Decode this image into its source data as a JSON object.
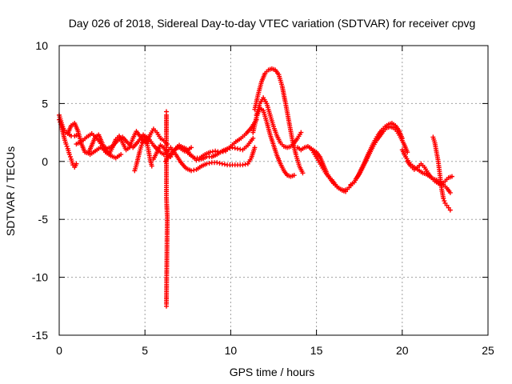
{
  "chart_data": {
    "type": "scatter",
    "title": "Day 026 of 2018, Sidereal Day-to-day VTEC variation (SDTVAR) for receiver cpvg",
    "xlabel": "GPS time / hours",
    "ylabel": "SDTVAR / TECUs",
    "xlim": [
      0,
      25
    ],
    "ylim": [
      -15,
      10
    ],
    "xticks": [
      "0",
      "5",
      "10",
      "15",
      "20",
      "25"
    ],
    "yticks": [
      "10",
      "5",
      "0",
      "-5",
      "-10",
      "-15"
    ],
    "grid": true,
    "marker": "+",
    "series_color": "#ff0000",
    "series": [
      {
        "name": "sdtvar",
        "segments": [
          {
            "x": [
              0.0,
              0.1,
              0.2,
              0.3,
              0.4,
              0.5,
              0.6,
              0.7,
              0.8,
              0.9,
              1.0
            ],
            "y": [
              3.6,
              3.2,
              2.6,
              2.0,
              1.5,
              1.1,
              0.6,
              0.2,
              -0.3,
              -0.5,
              -0.2
            ]
          },
          {
            "x": [
              0.0,
              0.1,
              0.2,
              0.3,
              0.4,
              0.5,
              0.7,
              0.9,
              1.1
            ],
            "y": [
              4.0,
              3.5,
              3.0,
              2.7,
              2.5,
              2.4,
              2.2,
              2.2,
              2.3
            ]
          },
          {
            "x": [
              0.5,
              0.7,
              0.9,
              1.1,
              1.3,
              1.5,
              1.7,
              1.9,
              2.1,
              2.3,
              2.5,
              2.7,
              2.9,
              3.1,
              3.3,
              3.5,
              3.7,
              3.9,
              4.1,
              4.3,
              4.5,
              4.7,
              4.9,
              5.1,
              5.3,
              5.5,
              5.7,
              5.9,
              6.1,
              6.3
            ],
            "y": [
              2.4,
              3.1,
              3.3,
              2.6,
              1.5,
              0.8,
              0.7,
              1.4,
              2.1,
              2.3,
              1.6,
              0.8,
              0.6,
              1.2,
              1.9,
              2.2,
              1.6,
              1.0,
              1.2,
              2.0,
              2.6,
              2.2,
              1.7,
              1.6,
              2.3,
              2.8,
              2.5,
              2.0,
              1.8,
              1.5
            ]
          },
          {
            "x": [
              1.0,
              1.3,
              1.6,
              1.9,
              2.2,
              2.5,
              2.8,
              3.1,
              3.4,
              3.7,
              4.0,
              4.3,
              4.6,
              4.9,
              5.2,
              5.5,
              5.8,
              6.1,
              6.4
            ],
            "y": [
              1.5,
              1.7,
              2.1,
              2.4,
              2.0,
              1.4,
              1.1,
              1.3,
              1.8,
              2.1,
              1.6,
              1.2,
              1.7,
              2.3,
              2.0,
              1.4,
              0.9,
              0.6,
              1.0
            ]
          },
          {
            "x": [
              1.8,
              2.1,
              2.4,
              2.7,
              3.0,
              3.3,
              3.6
            ],
            "y": [
              0.6,
              0.9,
              1.2,
              1.0,
              0.5,
              0.3,
              0.6
            ]
          },
          {
            "x": [
              4.4,
              4.5,
              4.6,
              4.7,
              4.8,
              4.9,
              5.0,
              5.1,
              5.2,
              5.3,
              5.4
            ],
            "y": [
              -0.8,
              -0.3,
              0.3,
              0.9,
              1.4,
              1.8,
              2.1,
              1.7,
              1.0,
              0.2,
              -0.4
            ]
          },
          {
            "x": [
              5.5,
              5.7,
              5.9,
              6.1,
              6.3,
              6.5,
              6.7,
              6.9,
              7.1,
              7.3,
              7.5,
              7.7
            ],
            "y": [
              0.2,
              0.8,
              1.4,
              1.2,
              0.6,
              0.4,
              0.9,
              1.3,
              1.1,
              0.9,
              1.0,
              1.2
            ]
          },
          {
            "x": [
              6.25,
              6.25,
              6.25,
              6.25,
              6.3,
              6.25,
              6.25
            ],
            "y": [
              4.3,
              4.0,
              -1.9,
              -3.1,
              -4.8,
              -12.3,
              -12.5
            ]
          },
          {
            "x": [
              6.2,
              6.5,
              6.8,
              7.1,
              7.4,
              7.7,
              8.0,
              8.3,
              8.6,
              8.9,
              9.2,
              9.5,
              9.8,
              10.1,
              10.4,
              10.7,
              11.0,
              11.3
            ],
            "y": [
              0.0,
              0.7,
              1.1,
              1.3,
              1.1,
              0.5,
              0.1,
              0.2,
              0.4,
              0.4,
              0.6,
              0.9,
              1.1,
              1.2,
              1.1,
              1.0,
              1.4,
              2.0
            ]
          },
          {
            "x": [
              6.5,
              6.8,
              7.1,
              7.4,
              7.7,
              8.0,
              8.3,
              8.6,
              8.9,
              9.2,
              9.5,
              9.8,
              10.1,
              10.4,
              10.7,
              11.0,
              11.2,
              11.4
            ],
            "y": [
              1.2,
              0.6,
              -0.1,
              -0.6,
              -0.8,
              -0.7,
              -0.4,
              -0.2,
              -0.1,
              -0.1,
              -0.2,
              -0.3,
              -0.3,
              -0.3,
              -0.3,
              -0.2,
              0.3,
              1.2
            ]
          },
          {
            "x": [
              7.0,
              7.3,
              7.6,
              7.9,
              8.2,
              8.5,
              8.8,
              9.1,
              9.4,
              9.7,
              10.0,
              10.3,
              10.6,
              10.9,
              11.2,
              11.5
            ],
            "y": [
              1.4,
              1.0,
              0.6,
              0.3,
              0.3,
              0.6,
              0.8,
              0.9,
              0.8,
              0.9,
              1.3,
              1.7,
              2.0,
              2.4,
              2.9,
              3.6
            ]
          },
          {
            "x": [
              11.4,
              11.6,
              11.8,
              12.0,
              12.2,
              12.4,
              12.6,
              12.8,
              13.0,
              13.2,
              13.4,
              13.6,
              13.8,
              14.0,
              14.2
            ],
            "y": [
              4.5,
              5.8,
              6.9,
              7.6,
              7.9,
              8.0,
              7.9,
              7.5,
              6.5,
              5.0,
              3.4,
              1.8,
              0.6,
              -0.4,
              -1.0
            ]
          },
          {
            "x": [
              11.5,
              11.7,
              11.9,
              12.1,
              12.3,
              12.5,
              12.7,
              12.9,
              13.1,
              13.3,
              13.5,
              13.7,
              13.9,
              14.1
            ],
            "y": [
              4.0,
              5.0,
              5.5,
              5.0,
              4.0,
              3.0,
              2.2,
              1.6,
              1.3,
              1.2,
              1.3,
              1.6,
              2.0,
              2.5
            ]
          },
          {
            "x": [
              11.3,
              11.5,
              11.7,
              11.9,
              12.1,
              12.3,
              12.5,
              12.7,
              12.9,
              13.1,
              13.3,
              13.5,
              13.7
            ],
            "y": [
              2.5,
              3.8,
              4.6,
              4.4,
              3.4,
              2.3,
              1.4,
              0.5,
              -0.2,
              -0.8,
              -1.2,
              -1.3,
              -1.2
            ]
          },
          {
            "x": [
              13.9,
              14.1,
              14.3,
              14.5,
              14.7,
              14.9,
              15.1,
              15.3,
              15.5,
              15.7,
              15.9,
              16.1,
              16.3,
              16.5,
              16.7
            ],
            "y": [
              1.2,
              1.0,
              1.2,
              1.3,
              1.1,
              0.6,
              0.1,
              -0.4,
              -0.9,
              -1.3,
              -1.6,
              -2.0,
              -2.3,
              -2.5,
              -2.6
            ]
          },
          {
            "x": [
              14.6,
              14.8,
              15.0,
              15.2,
              15.4,
              15.6,
              15.8,
              16.0,
              16.2,
              16.4,
              16.6,
              16.8,
              17.0
            ],
            "y": [
              1.2,
              1.0,
              0.8,
              0.4,
              -0.3,
              -1.0,
              -1.5,
              -1.9,
              -2.2,
              -2.4,
              -2.5,
              -2.4,
              -2.1
            ]
          },
          {
            "x": [
              17.0,
              17.2,
              17.4,
              17.6,
              17.8,
              18.0,
              18.2,
              18.4,
              18.6,
              18.8,
              19.0,
              19.2,
              19.4,
              19.6,
              19.8,
              20.0
            ],
            "y": [
              -2.0,
              -1.8,
              -1.3,
              -0.7,
              -0.1,
              0.6,
              1.2,
              1.8,
              2.3,
              2.7,
              3.0,
              3.2,
              3.3,
              3.1,
              2.7,
              2.0
            ]
          },
          {
            "x": [
              17.3,
              17.5,
              17.7,
              17.9,
              18.1,
              18.3,
              18.5,
              18.7,
              18.9,
              19.1,
              19.3,
              19.5,
              19.7,
              19.9,
              20.1,
              20.3
            ],
            "y": [
              -1.5,
              -1.1,
              -0.5,
              0.1,
              0.7,
              1.3,
              1.8,
              2.2,
              2.6,
              2.9,
              3.0,
              2.9,
              2.6,
              2.1,
              1.5,
              0.8
            ]
          },
          {
            "x": [
              20.0,
              20.2,
              20.4,
              20.6,
              20.8,
              21.0,
              21.2,
              21.4,
              21.6,
              21.8,
              22.0,
              22.2,
              22.4,
              22.6,
              22.8
            ],
            "y": [
              1.0,
              0.4,
              -0.1,
              -0.4,
              -0.6,
              -0.8,
              -1.0,
              -1.1,
              -1.3,
              -1.5,
              -1.6,
              -1.8,
              -2.0,
              -2.3,
              -2.7
            ]
          },
          {
            "x": [
              20.3,
              20.5,
              20.7,
              20.9,
              21.1,
              21.3,
              21.5,
              21.7,
              21.9,
              22.1,
              22.3,
              22.5,
              22.7,
              22.9
            ],
            "y": [
              0.0,
              -0.4,
              -0.7,
              -0.5,
              -0.2,
              -0.5,
              -1.0,
              -1.4,
              -1.7,
              -1.9,
              -2.0,
              -1.7,
              -1.4,
              -1.3
            ]
          },
          {
            "x": [
              21.8,
              21.9,
              22.0,
              22.1,
              22.2,
              22.3,
              22.4,
              22.5,
              22.6,
              22.7,
              22.8
            ],
            "y": [
              2.1,
              1.6,
              0.8,
              0.0,
              -1.2,
              -2.4,
              -3.2,
              -3.6,
              -3.8,
              -4.0,
              -4.2
            ]
          }
        ]
      }
    ]
  }
}
